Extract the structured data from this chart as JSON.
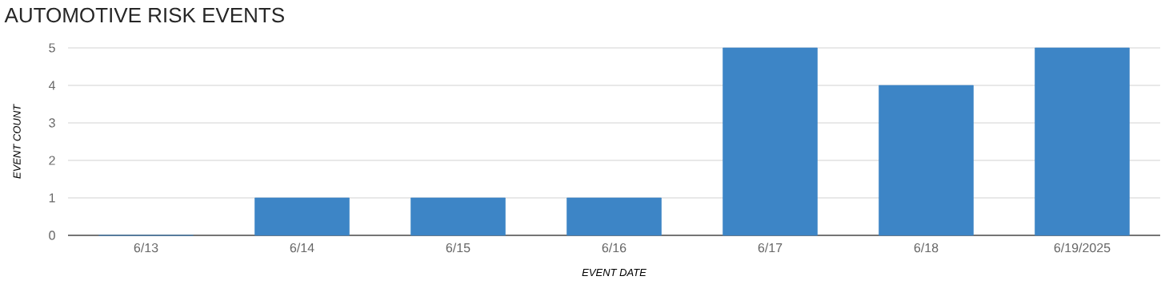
{
  "chart_data": {
    "type": "bar",
    "title": "AUTOMOTIVE RISK EVENTS",
    "xlabel": "EVENT DATE",
    "ylabel": "EVENT COUNT",
    "categories": [
      "6/13",
      "6/14",
      "6/15",
      "6/16",
      "6/17",
      "6/18",
      "6/19/2025"
    ],
    "values": [
      0,
      1,
      1,
      1,
      5,
      4,
      5
    ],
    "color": "#3d85c6",
    "ylim": [
      0,
      5
    ],
    "yticks": [
      0,
      1,
      2,
      3,
      4,
      5
    ],
    "grid": "y"
  }
}
